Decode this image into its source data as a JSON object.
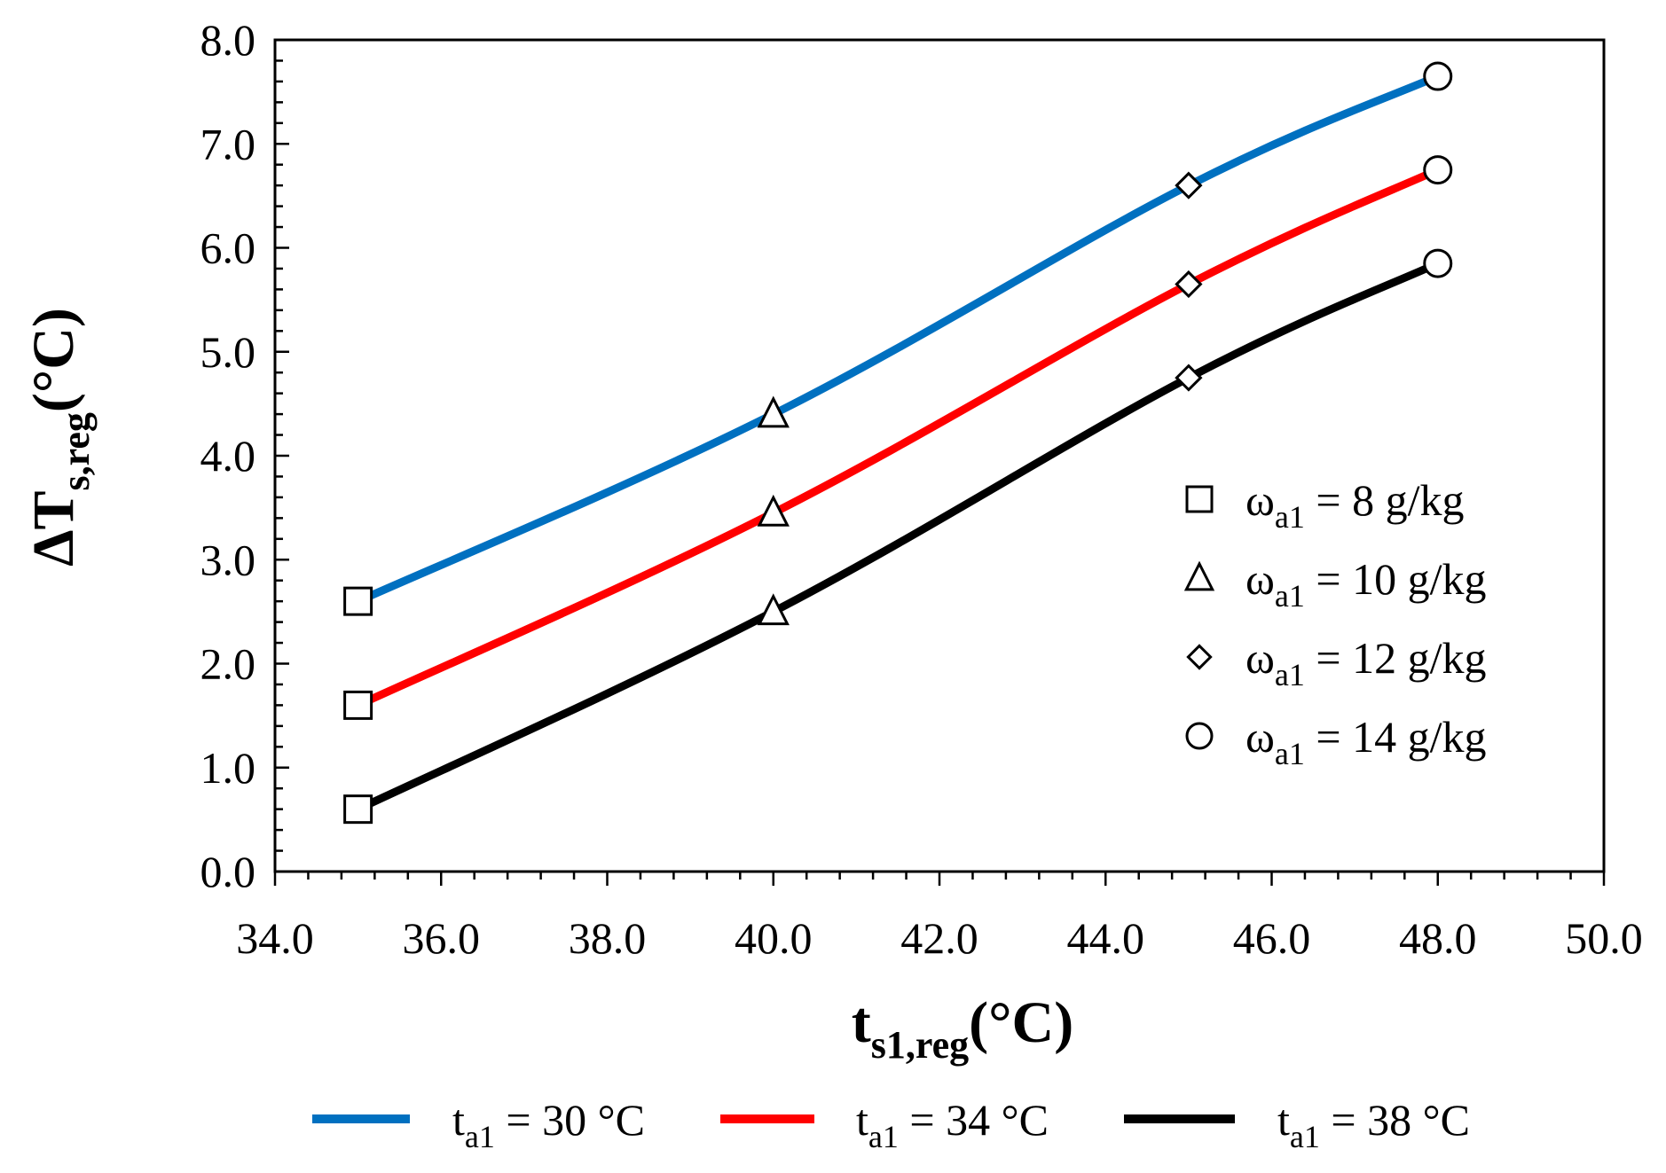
{
  "chart_data": {
    "type": "line",
    "xlabel": {
      "main": "t",
      "sub": "s1,reg",
      "unit": "(°C)"
    },
    "ylabel": {
      "prefix": "ΔT",
      "sub": "s,reg",
      "unit": "(°C)"
    },
    "xlim": [
      34,
      50
    ],
    "ylim": [
      0,
      8
    ],
    "xticks": [
      34,
      36,
      38,
      40,
      42,
      44,
      46,
      48,
      50
    ],
    "xtick_labels": [
      "34.0",
      "36.0",
      "38.0",
      "40.0",
      "42.0",
      "44.0",
      "46.0",
      "48.0",
      "50.0"
    ],
    "yticks": [
      0,
      1,
      2,
      3,
      4,
      5,
      6,
      7,
      8
    ],
    "ytick_labels": [
      "0.0",
      "1.0",
      "2.0",
      "3.0",
      "4.0",
      "5.0",
      "6.0",
      "7.0",
      "8.0"
    ],
    "x": [
      35,
      40,
      45,
      48
    ],
    "point_markers": [
      "square",
      "triangle",
      "diamond",
      "circle"
    ],
    "series": [
      {
        "name": "t_a1 = 30 °C",
        "color": "#0070c0",
        "values": [
          2.6,
          4.4,
          6.6,
          7.65
        ]
      },
      {
        "name": "t_a1 = 34 °C",
        "color": "#ff0000",
        "values": [
          1.6,
          3.45,
          5.65,
          6.75
        ]
      },
      {
        "name": "t_a1 = 38 °C",
        "color": "#000000",
        "values": [
          0.6,
          2.5,
          4.75,
          5.85
        ]
      }
    ],
    "marker_legend": [
      {
        "marker": "square",
        "sym": "ω",
        "sub": "a1",
        "text": " = 8 g/kg"
      },
      {
        "marker": "triangle",
        "sym": "ω",
        "sub": "a1",
        "text": " = 10 g/kg"
      },
      {
        "marker": "diamond",
        "sym": "ω",
        "sub": "a1",
        "text": " = 12 g/kg"
      },
      {
        "marker": "circle",
        "sym": "ω",
        "sub": "a1",
        "text": " = 14 g/kg"
      }
    ],
    "series_legend": [
      {
        "sym": "t",
        "sub": "a1",
        "text": " = 30 °C",
        "color": "#0070c0"
      },
      {
        "sym": "t",
        "sub": "a1",
        "text": " = 34 °C",
        "color": "#ff0000"
      },
      {
        "sym": "t",
        "sub": "a1",
        "text": " = 38 °C",
        "color": "#000000"
      }
    ]
  }
}
